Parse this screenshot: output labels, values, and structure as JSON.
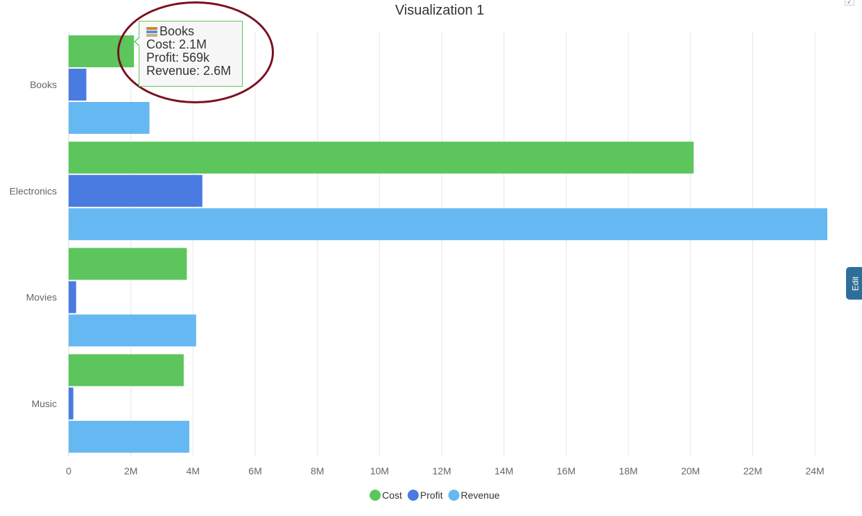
{
  "chart_data": {
    "type": "bar",
    "orientation": "horizontal",
    "title": "Visualization 1",
    "categories": [
      "Books",
      "Electronics",
      "Movies",
      "Music"
    ],
    "series": [
      {
        "name": "Cost",
        "color": "#5cc55c",
        "values": [
          2100000,
          20100000,
          3800000,
          3700000
        ]
      },
      {
        "name": "Profit",
        "color": "#4a7be0",
        "values": [
          569000,
          4300000,
          240000,
          150000
        ]
      },
      {
        "name": "Revenue",
        "color": "#66b8f2",
        "values": [
          2600000,
          24400000,
          4100000,
          3880000
        ]
      }
    ],
    "x_ticks": [
      "0",
      "2M",
      "4M",
      "6M",
      "8M",
      "10M",
      "12M",
      "14M",
      "16M",
      "18M",
      "20M",
      "22M",
      "24M"
    ],
    "xlim": [
      0,
      24400000
    ],
    "grid": true,
    "legend_position": "bottom-center"
  },
  "tooltip": {
    "category": "Books",
    "icon": "book-icon",
    "lines": [
      "Cost: 2.1M",
      "Profit: 569k",
      "Revenue: 2.6M"
    ]
  },
  "edit_tab": {
    "label": "Edit"
  }
}
